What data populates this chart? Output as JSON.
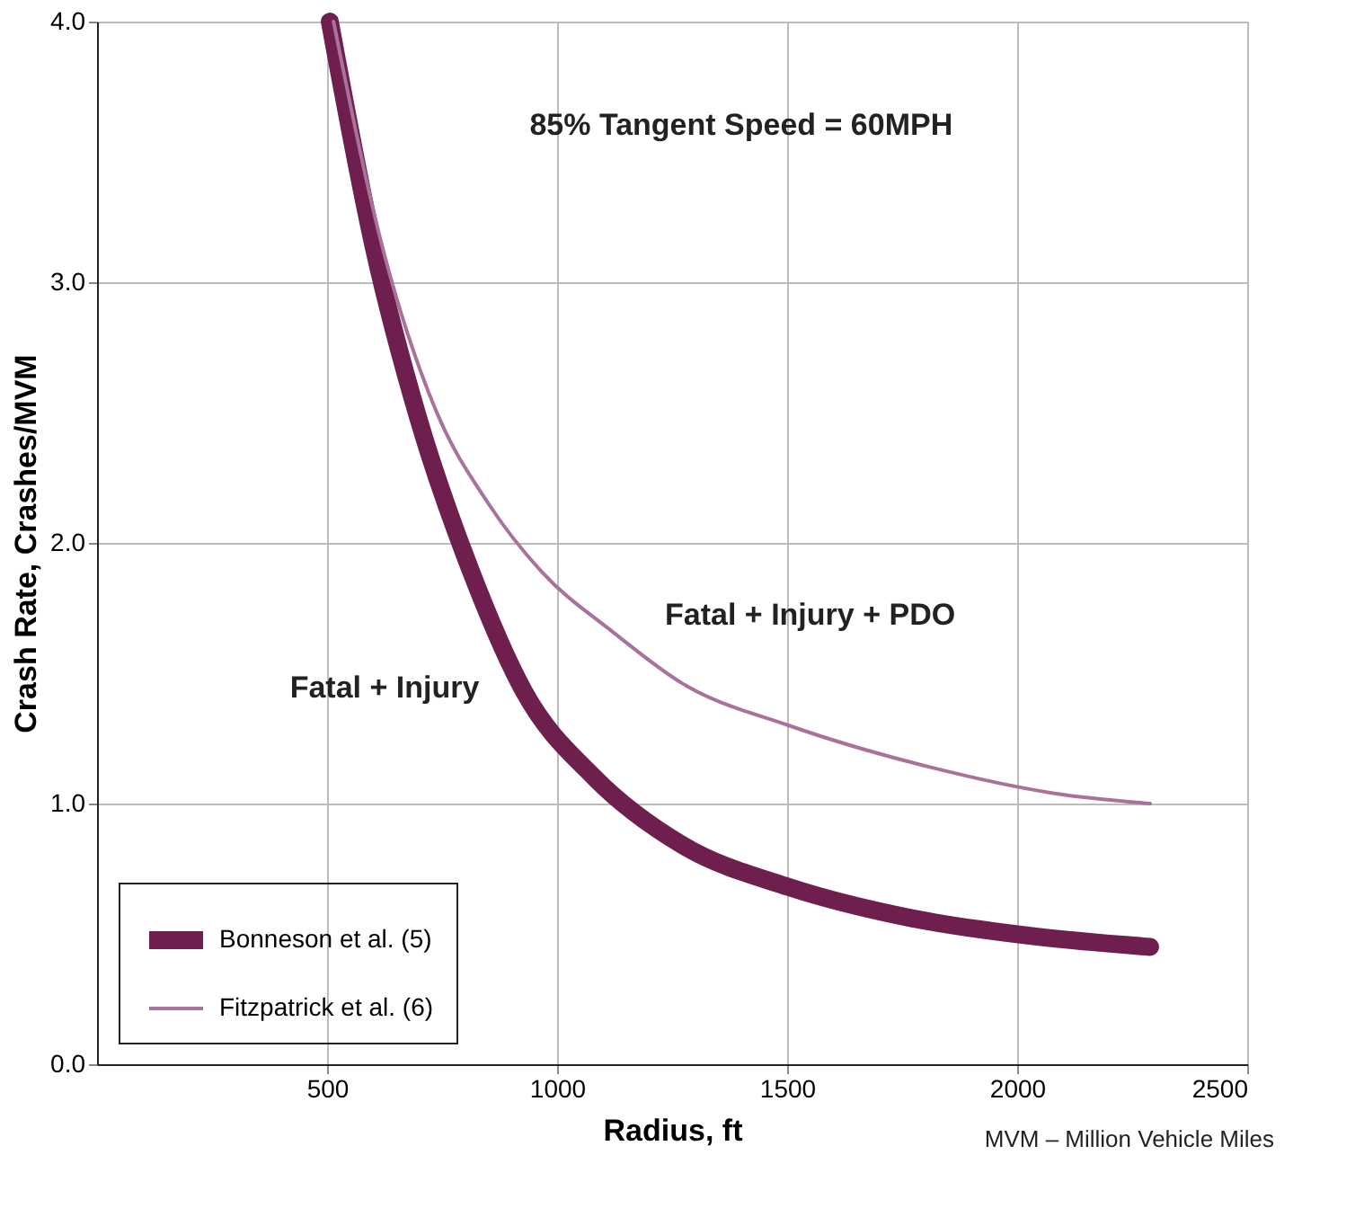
{
  "chart_data": {
    "type": "line",
    "xlabel": "Radius, ft",
    "ylabel": "Crash Rate, Crashes/MVM",
    "xlim": [
      0,
      2500
    ],
    "ylim": [
      0,
      4
    ],
    "xticks": [
      500,
      1000,
      1500,
      2000,
      2500
    ],
    "yticks": [
      {
        "value": 0,
        "label": "0.0"
      },
      {
        "value": 1,
        "label": "1.0"
      },
      {
        "value": 2,
        "label": "2.0"
      },
      {
        "value": 3,
        "label": "3.0"
      },
      {
        "value": 4,
        "label": "4.0"
      }
    ],
    "grid": true,
    "legend": "bottom left",
    "marker": "none",
    "line_style": "solid",
    "series": [
      {
        "name": "Bonneson et al. (5)",
        "color": "#6e1f4e",
        "x": [
          506,
          602,
          698,
          813,
          928,
          1081,
          1273,
          1503,
          1771,
          2040,
          2289
        ],
        "values": [
          4.0,
          3.13,
          2.48,
          1.89,
          1.43,
          1.1,
          0.84,
          0.68,
          0.56,
          0.49,
          0.45
        ]
      },
      {
        "name": "Fitzpatrick et al. (6)",
        "color": "#a8729a",
        "x": [
          514,
          621,
          736,
          851,
          966,
          1120,
          1273,
          1503,
          1810,
          2078,
          2289
        ],
        "values": [
          4.0,
          3.13,
          2.51,
          2.15,
          1.89,
          1.66,
          1.46,
          1.3,
          1.14,
          1.04,
          1.0
        ]
      }
    ],
    "annotations": [
      "85% Tangent Speed = 60MPH",
      "Fatal + Injury",
      "Fatal + Injury + PDO",
      "MVM – Million Vehicle Miles"
    ]
  }
}
